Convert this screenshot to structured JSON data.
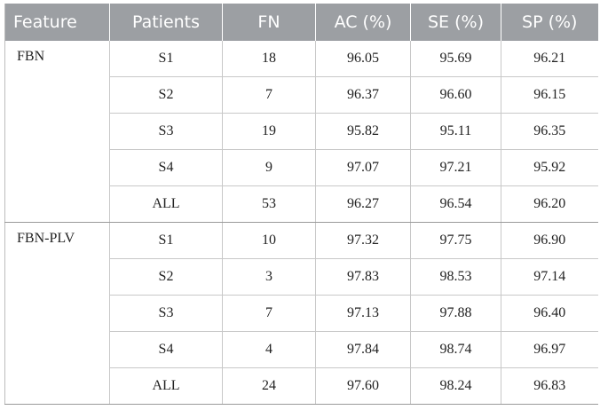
{
  "table": {
    "headers": [
      "Feature",
      "Patients",
      "FN",
      "AC (%)",
      "SE (%)",
      "SP (%)"
    ],
    "groups": [
      {
        "feature": "FBN",
        "rows": [
          {
            "patients": "S1",
            "fn": "18",
            "ac": "96.05",
            "se": "95.69",
            "sp": "96.21"
          },
          {
            "patients": "S2",
            "fn": "7",
            "ac": "96.37",
            "se": "96.60",
            "sp": "96.15"
          },
          {
            "patients": "S3",
            "fn": "19",
            "ac": "95.82",
            "se": "95.11",
            "sp": "96.35"
          },
          {
            "patients": "S4",
            "fn": "9",
            "ac": "97.07",
            "se": "97.21",
            "sp": "95.92"
          },
          {
            "patients": "ALL",
            "fn": "53",
            "ac": "96.27",
            "se": "96.54",
            "sp": "96.20"
          }
        ]
      },
      {
        "feature": "FBN-PLV",
        "rows": [
          {
            "patients": "S1",
            "fn": "10",
            "ac": "97.32",
            "se": "97.75",
            "sp": "96.90"
          },
          {
            "patients": "S2",
            "fn": "3",
            "ac": "97.83",
            "se": "98.53",
            "sp": "97.14"
          },
          {
            "patients": "S3",
            "fn": "7",
            "ac": "97.13",
            "se": "97.88",
            "sp": "96.40"
          },
          {
            "patients": "S4",
            "fn": "4",
            "ac": "97.84",
            "se": "98.74",
            "sp": "96.97"
          },
          {
            "patients": "ALL",
            "fn": "24",
            "ac": "97.60",
            "se": "98.24",
            "sp": "96.83"
          }
        ]
      }
    ]
  }
}
